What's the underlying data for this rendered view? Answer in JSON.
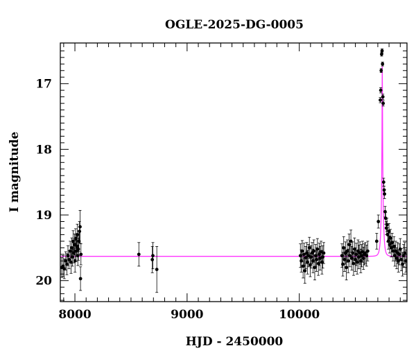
{
  "chart_data": {
    "type": "scatter",
    "title": "OGLE-2025-DG-0005",
    "xlabel": "HJD - 2450000",
    "ylabel": "I magnitude",
    "xlim": [
      7870,
      10960
    ],
    "ylim": [
      20.32,
      16.38
    ],
    "y_inverted": true,
    "grid": false,
    "x_major_ticks": [
      8000,
      9000,
      10000
    ],
    "x_tick_labels": [
      "8000",
      "9000",
      "10000"
    ],
    "y_major_ticks": [
      17,
      18,
      19,
      20
    ],
    "y_tick_labels": [
      "17",
      "18",
      "19",
      "20"
    ],
    "colors": {
      "data": "#000000",
      "model": "#ff33ff"
    },
    "model": {
      "baseline": 19.63,
      "peak_time": 10740,
      "peak_mag": 16.45,
      "tE": 16
    },
    "data_points": [
      {
        "t": 7882,
        "m": 19.8,
        "e": 0.15
      },
      {
        "t": 7895,
        "m": 19.78,
        "e": 0.16
      },
      {
        "t": 7905,
        "m": 19.82,
        "e": 0.15
      },
      {
        "t": 7918,
        "m": 19.7,
        "e": 0.14
      },
      {
        "t": 7928,
        "m": 19.75,
        "e": 0.16
      },
      {
        "t": 7938,
        "m": 19.62,
        "e": 0.15
      },
      {
        "t": 7948,
        "m": 19.68,
        "e": 0.14
      },
      {
        "t": 7958,
        "m": 19.55,
        "e": 0.15
      },
      {
        "t": 7966,
        "m": 19.72,
        "e": 0.17
      },
      {
        "t": 7972,
        "m": 19.5,
        "e": 0.15
      },
      {
        "t": 7978,
        "m": 19.64,
        "e": 0.14
      },
      {
        "t": 7984,
        "m": 19.4,
        "e": 0.16
      },
      {
        "t": 7990,
        "m": 19.58,
        "e": 0.15
      },
      {
        "t": 7996,
        "m": 19.45,
        "e": 0.16
      },
      {
        "t": 8001,
        "m": 19.7,
        "e": 0.17
      },
      {
        "t": 8006,
        "m": 19.36,
        "e": 0.15
      },
      {
        "t": 8011,
        "m": 19.55,
        "e": 0.16
      },
      {
        "t": 8016,
        "m": 19.48,
        "e": 0.15
      },
      {
        "t": 8021,
        "m": 19.3,
        "e": 0.16
      },
      {
        "t": 8026,
        "m": 19.62,
        "e": 0.15
      },
      {
        "t": 8031,
        "m": 19.52,
        "e": 0.17
      },
      {
        "t": 8036,
        "m": 19.4,
        "e": 0.16
      },
      {
        "t": 8041,
        "m": 19.25,
        "e": 0.15
      },
      {
        "t": 8046,
        "m": 19.18,
        "e": 0.25
      },
      {
        "t": 8050,
        "m": 19.97,
        "e": 0.18
      },
      {
        "t": 8054,
        "m": 19.6,
        "e": 0.16
      },
      {
        "t": 8570,
        "m": 19.6,
        "e": 0.18
      },
      {
        "t": 8690,
        "m": 19.68,
        "e": 0.2
      },
      {
        "t": 8695,
        "m": 19.62,
        "e": 0.2
      },
      {
        "t": 8730,
        "m": 19.83,
        "e": 0.35
      },
      {
        "t": 10010,
        "m": 19.62,
        "e": 0.18
      },
      {
        "t": 10018,
        "m": 19.7,
        "e": 0.17
      },
      {
        "t": 10026,
        "m": 19.55,
        "e": 0.16
      },
      {
        "t": 10034,
        "m": 19.78,
        "e": 0.18
      },
      {
        "t": 10042,
        "m": 19.6,
        "e": 0.17
      },
      {
        "t": 10050,
        "m": 19.85,
        "e": 0.19
      },
      {
        "t": 10058,
        "m": 19.65,
        "e": 0.17
      },
      {
        "t": 10066,
        "m": 19.58,
        "e": 0.16
      },
      {
        "t": 10074,
        "m": 19.72,
        "e": 0.18
      },
      {
        "t": 10082,
        "m": 19.62,
        "e": 0.17
      },
      {
        "t": 10090,
        "m": 19.5,
        "e": 0.16
      },
      {
        "t": 10098,
        "m": 19.76,
        "e": 0.18
      },
      {
        "t": 10106,
        "m": 19.64,
        "e": 0.17
      },
      {
        "t": 10114,
        "m": 19.58,
        "e": 0.16
      },
      {
        "t": 10122,
        "m": 19.7,
        "e": 0.18
      },
      {
        "t": 10130,
        "m": 19.55,
        "e": 0.17
      },
      {
        "t": 10138,
        "m": 19.8,
        "e": 0.19
      },
      {
        "t": 10146,
        "m": 19.62,
        "e": 0.17
      },
      {
        "t": 10154,
        "m": 19.68,
        "e": 0.18
      },
      {
        "t": 10162,
        "m": 19.52,
        "e": 0.16
      },
      {
        "t": 10170,
        "m": 19.74,
        "e": 0.18
      },
      {
        "t": 10178,
        "m": 19.6,
        "e": 0.17
      },
      {
        "t": 10186,
        "m": 19.66,
        "e": 0.18
      },
      {
        "t": 10194,
        "m": 19.56,
        "e": 0.16
      },
      {
        "t": 10202,
        "m": 19.72,
        "e": 0.18
      },
      {
        "t": 10210,
        "m": 19.64,
        "e": 0.17
      },
      {
        "t": 10218,
        "m": 19.58,
        "e": 0.16
      },
      {
        "t": 10380,
        "m": 19.62,
        "e": 0.18
      },
      {
        "t": 10388,
        "m": 19.75,
        "e": 0.18
      },
      {
        "t": 10396,
        "m": 19.5,
        "e": 0.17
      },
      {
        "t": 10404,
        "m": 19.68,
        "e": 0.18
      },
      {
        "t": 10412,
        "m": 19.58,
        "e": 0.17
      },
      {
        "t": 10420,
        "m": 19.8,
        "e": 0.19
      },
      {
        "t": 10428,
        "m": 19.55,
        "e": 0.17
      },
      {
        "t": 10436,
        "m": 19.7,
        "e": 0.18
      },
      {
        "t": 10444,
        "m": 19.45,
        "e": 0.16
      },
      {
        "t": 10452,
        "m": 19.62,
        "e": 0.17
      },
      {
        "t": 10460,
        "m": 19.4,
        "e": 0.17
      },
      {
        "t": 10468,
        "m": 19.66,
        "e": 0.18
      },
      {
        "t": 10476,
        "m": 19.58,
        "e": 0.17
      },
      {
        "t": 10484,
        "m": 19.74,
        "e": 0.18
      },
      {
        "t": 10492,
        "m": 19.52,
        "e": 0.17
      },
      {
        "t": 10500,
        "m": 19.68,
        "e": 0.18
      },
      {
        "t": 10508,
        "m": 19.6,
        "e": 0.17
      },
      {
        "t": 10516,
        "m": 19.72,
        "e": 0.18
      },
      {
        "t": 10524,
        "m": 19.55,
        "e": 0.17
      },
      {
        "t": 10532,
        "m": 19.64,
        "e": 0.18
      },
      {
        "t": 10540,
        "m": 19.58,
        "e": 0.17
      },
      {
        "t": 10548,
        "m": 19.7,
        "e": 0.18
      },
      {
        "t": 10556,
        "m": 19.62,
        "e": 0.17
      },
      {
        "t": 10564,
        "m": 19.56,
        "e": 0.16
      },
      {
        "t": 10572,
        "m": 19.66,
        "e": 0.17
      },
      {
        "t": 10580,
        "m": 19.6,
        "e": 0.16
      },
      {
        "t": 10590,
        "m": 19.58,
        "e": 0.16
      },
      {
        "t": 10600,
        "m": 19.62,
        "e": 0.16
      },
      {
        "t": 10610,
        "m": 19.55,
        "e": 0.15
      },
      {
        "t": 10690,
        "m": 19.4,
        "e": 0.12
      },
      {
        "t": 10705,
        "m": 19.1,
        "e": 0.1
      },
      {
        "t": 10722,
        "m": 17.25,
        "e": 0.04
      },
      {
        "t": 10726,
        "m": 17.1,
        "e": 0.04
      },
      {
        "t": 10730,
        "m": 16.8,
        "e": 0.03
      },
      {
        "t": 10734,
        "m": 16.55,
        "e": 0.03
      },
      {
        "t": 10738,
        "m": 16.5,
        "e": 0.03
      },
      {
        "t": 10742,
        "m": 16.7,
        "e": 0.03
      },
      {
        "t": 10745,
        "m": 17.2,
        "e": 0.04
      },
      {
        "t": 10748,
        "m": 17.3,
        "e": 0.04
      },
      {
        "t": 10752,
        "m": 18.5,
        "e": 0.06
      },
      {
        "t": 10756,
        "m": 18.62,
        "e": 0.06
      },
      {
        "t": 10760,
        "m": 18.68,
        "e": 0.07
      },
      {
        "t": 10765,
        "m": 18.95,
        "e": 0.08
      },
      {
        "t": 10770,
        "m": 19.05,
        "e": 0.09
      },
      {
        "t": 10776,
        "m": 19.2,
        "e": 0.1
      },
      {
        "t": 10782,
        "m": 19.15,
        "e": 0.1
      },
      {
        "t": 10788,
        "m": 19.3,
        "e": 0.11
      },
      {
        "t": 10794,
        "m": 19.4,
        "e": 0.12
      },
      {
        "t": 10800,
        "m": 19.25,
        "e": 0.12
      },
      {
        "t": 10806,
        "m": 19.45,
        "e": 0.13
      },
      {
        "t": 10812,
        "m": 19.35,
        "e": 0.13
      },
      {
        "t": 10820,
        "m": 19.5,
        "e": 0.14
      },
      {
        "t": 10828,
        "m": 19.42,
        "e": 0.14
      },
      {
        "t": 10836,
        "m": 19.55,
        "e": 0.15
      },
      {
        "t": 10844,
        "m": 19.48,
        "e": 0.15
      },
      {
        "t": 10852,
        "m": 19.62,
        "e": 0.16
      },
      {
        "t": 10860,
        "m": 19.55,
        "e": 0.15
      },
      {
        "t": 10868,
        "m": 19.66,
        "e": 0.16
      },
      {
        "t": 10876,
        "m": 19.58,
        "e": 0.16
      },
      {
        "t": 10884,
        "m": 19.7,
        "e": 0.17
      },
      {
        "t": 10892,
        "m": 19.6,
        "e": 0.16
      },
      {
        "t": 10900,
        "m": 19.52,
        "e": 0.16
      },
      {
        "t": 10910,
        "m": 19.68,
        "e": 0.17
      },
      {
        "t": 10920,
        "m": 19.75,
        "e": 0.18
      },
      {
        "t": 10930,
        "m": 19.62,
        "e": 0.17
      },
      {
        "t": 10940,
        "m": 19.58,
        "e": 0.16
      },
      {
        "t": 10950,
        "m": 19.7,
        "e": 0.17
      }
    ]
  }
}
